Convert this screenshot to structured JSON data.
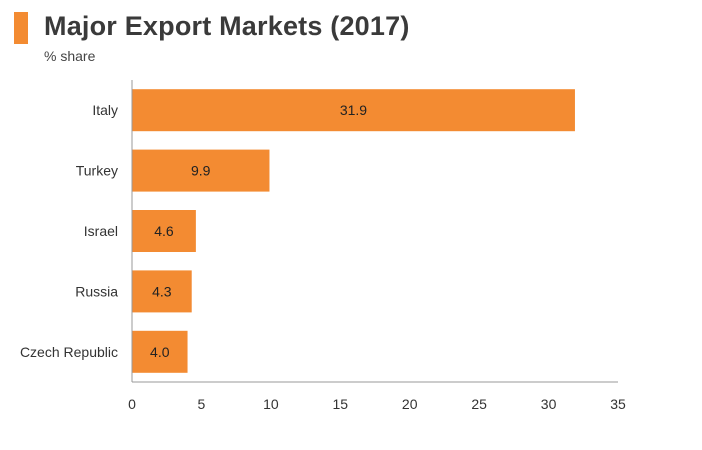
{
  "header": {
    "title": "Major Export Markets (2017)",
    "subtitle": "% share"
  },
  "colors": {
    "accent": "#f38b32",
    "bar": "#f38b32",
    "axis": "#999999",
    "text": "#333333"
  },
  "chart_data": {
    "type": "bar",
    "orientation": "horizontal",
    "title": "Major Export Markets (2017)",
    "subtitle": "% share",
    "categories": [
      "Italy",
      "Turkey",
      "Israel",
      "Russia",
      "Czech Republic"
    ],
    "values": [
      31.9,
      9.9,
      4.6,
      4.3,
      4.0
    ],
    "value_labels": [
      "31.9",
      "9.9",
      "4.6",
      "4.3",
      "4.0"
    ],
    "xlim": [
      0,
      35
    ],
    "xticks": [
      0,
      5,
      10,
      15,
      20,
      25,
      30,
      35
    ],
    "xlabel": "",
    "ylabel": "",
    "grid": false,
    "legend": "none"
  }
}
